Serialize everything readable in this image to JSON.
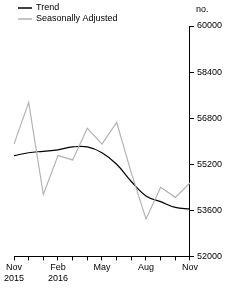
{
  "chart_data": {
    "type": "line",
    "y_label": "no.",
    "categories": [
      "Nov 2015",
      null,
      null,
      "Feb 2016",
      null,
      null,
      "May",
      null,
      null,
      "Aug",
      null,
      null,
      "Nov"
    ],
    "series": [
      {
        "name": "Trend",
        "color": "#000000",
        "values": [
          55500,
          55600,
          55650,
          55700,
          55800,
          55800,
          55600,
          55200,
          54600,
          54100,
          53900,
          53700,
          53650
        ]
      },
      {
        "name": "Seasonally Adjusted",
        "color": "#b3b3b3",
        "values": [
          55900,
          57350,
          54150,
          55500,
          55350,
          56450,
          55900,
          56650,
          54900,
          53300,
          54400,
          54050,
          54550
        ]
      }
    ],
    "ylim": [
      52000,
      60000
    ],
    "yticks": [
      52000,
      53600,
      55200,
      56800,
      58400,
      60000
    ],
    "grid": false,
    "legend": "top-left"
  }
}
